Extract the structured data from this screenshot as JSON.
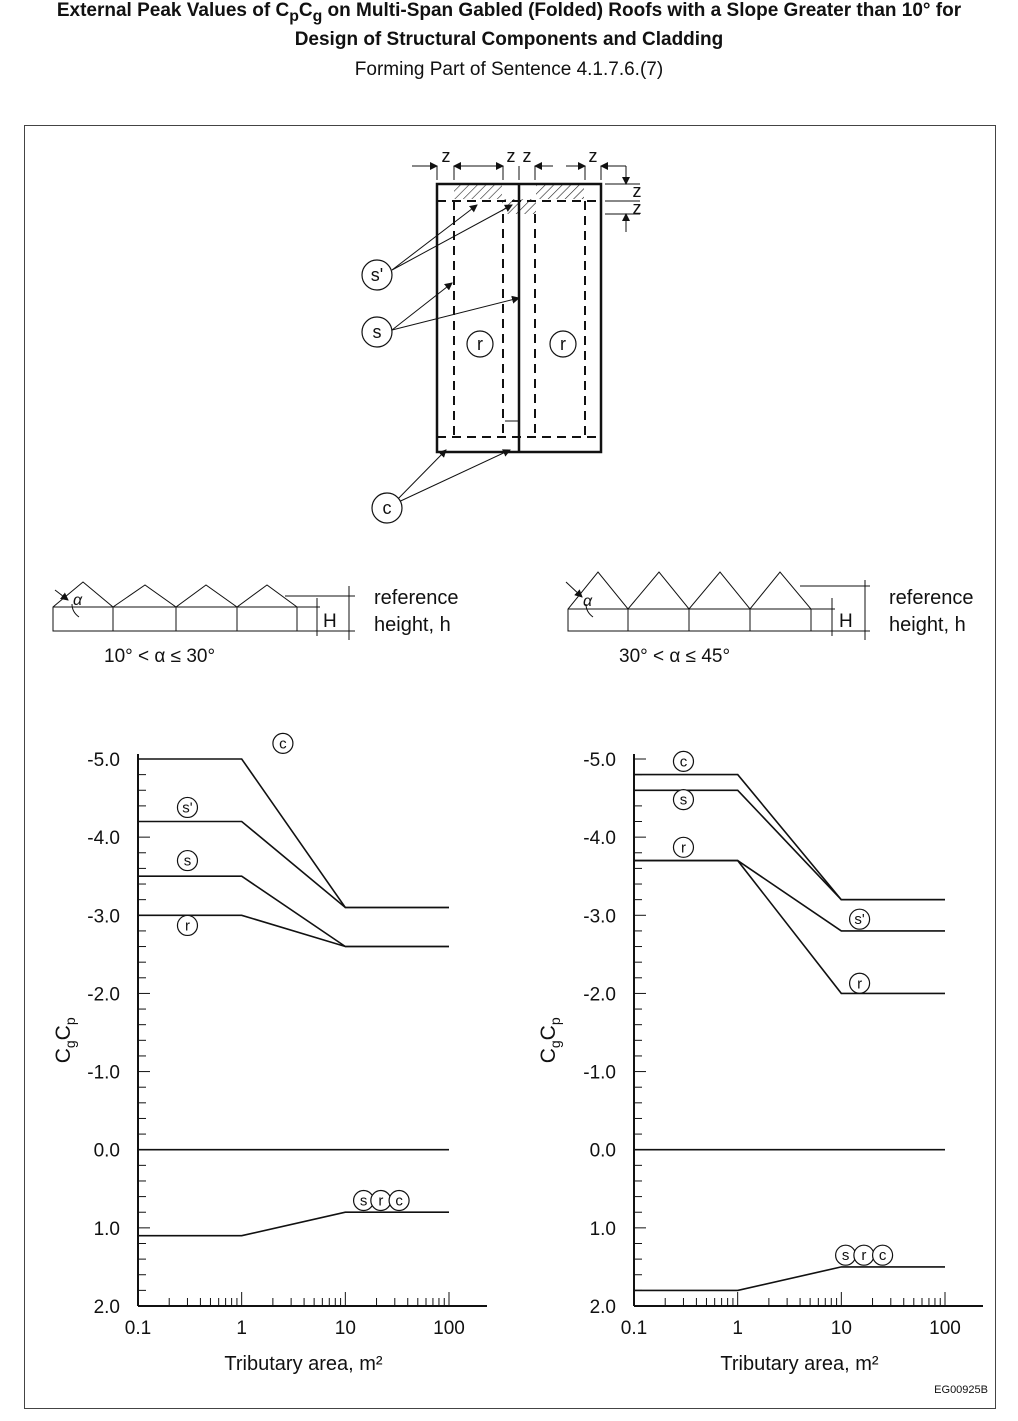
{
  "title": {
    "line1_pre": "External Peak Values of C",
    "line1_sub1": "p",
    "line1_mid": "C",
    "line1_sub2": "g",
    "line1_post": " on Multi-Span Gabled (Folded) Roofs with a Slope Greater than 10° for",
    "line2": "Design of Structural Components and Cladding",
    "line3": "Forming Part of Sentence 4.1.7.6.(7)"
  },
  "plan": {
    "dim_label": "z",
    "zone_labels": {
      "s_prime": "s'",
      "s": "s",
      "r": "r",
      "c": "c"
    }
  },
  "sections": [
    {
      "angle_symbol": "α",
      "range": "10° < α ≤ 30°",
      "height_label": "H",
      "ref_line1": "reference",
      "ref_line2": "height, h"
    },
    {
      "angle_symbol": "α",
      "range": "30° < α ≤ 45°",
      "height_label": "H",
      "ref_line1": "reference",
      "ref_line2": "height, h"
    }
  ],
  "code": "EG00925B",
  "chart_data": [
    {
      "type": "line",
      "xlabel": "Tributary area, m²",
      "ylabel_main": "C",
      "ylabel_sub1": "g",
      "ylabel_mid": "C",
      "ylabel_sub2": "p",
      "xscale": "log",
      "xlim": [
        0.1,
        100
      ],
      "xticks": [
        "0.1",
        "1",
        "10",
        "100"
      ],
      "ylim": [
        -5.0,
        2.0
      ],
      "yticks": [
        "-5.0",
        "-4.0",
        "-3.0",
        "-2.0",
        "-1.0",
        "0.0",
        "1.0",
        "2.0"
      ],
      "series": [
        {
          "name": "c",
          "x": [
            0.1,
            1,
            10,
            100
          ],
          "y": [
            -5.0,
            -5.0,
            -3.1,
            -3.1
          ]
        },
        {
          "name": "s'",
          "x": [
            0.1,
            1,
            10,
            100
          ],
          "y": [
            -4.2,
            -4.2,
            -3.1,
            -3.1
          ]
        },
        {
          "name": "s",
          "x": [
            0.1,
            1,
            10,
            100
          ],
          "y": [
            -3.5,
            -3.5,
            -2.6,
            -2.6
          ]
        },
        {
          "name": "r",
          "x": [
            0.1,
            1,
            10,
            100
          ],
          "y": [
            -3.0,
            -3.0,
            -2.6,
            -2.6
          ]
        },
        {
          "name": "",
          "x": [
            0.1,
            100
          ],
          "y": [
            0.0,
            0.0
          ]
        },
        {
          "name": "src",
          "x": [
            0.1,
            1,
            10,
            100
          ],
          "y": [
            1.1,
            1.1,
            0.8,
            0.8
          ]
        }
      ],
      "curve_labels": [
        {
          "text": "c",
          "x": 2.5,
          "y": -5.2
        },
        {
          "text": "s'",
          "x": 0.3,
          "y": -4.38
        },
        {
          "text": "s",
          "x": 0.3,
          "y": -3.7
        },
        {
          "text": "r",
          "x": 0.3,
          "y": -2.87
        },
        {
          "text": "s",
          "x": 15,
          "y": 0.65
        },
        {
          "text": "r",
          "x": 22,
          "y": 0.65
        },
        {
          "text": "c",
          "x": 33,
          "y": 0.65
        }
      ]
    },
    {
      "type": "line",
      "xlabel": "Tributary area, m²",
      "ylabel_main": "C",
      "ylabel_sub1": "g",
      "ylabel_mid": "C",
      "ylabel_sub2": "p",
      "xscale": "log",
      "xlim": [
        0.1,
        100
      ],
      "xticks": [
        "0.1",
        "1",
        "10",
        "100"
      ],
      "ylim": [
        -5.0,
        2.0
      ],
      "yticks": [
        "-5.0",
        "-4.0",
        "-3.0",
        "-2.0",
        "-1.0",
        "0.0",
        "1.0",
        "2.0"
      ],
      "series": [
        {
          "name": "c",
          "x": [
            0.1,
            1,
            10,
            100
          ],
          "y": [
            -4.8,
            -4.8,
            -3.2,
            -3.2
          ]
        },
        {
          "name": "s",
          "x": [
            0.1,
            1,
            10,
            100
          ],
          "y": [
            -4.6,
            -4.6,
            -3.2,
            -3.2
          ]
        },
        {
          "name": "s'",
          "x": [
            0.1,
            1,
            10,
            100
          ],
          "y": [
            -3.7,
            -3.7,
            -2.8,
            -2.8
          ]
        },
        {
          "name": "r",
          "x": [
            0.1,
            1,
            10,
            100
          ],
          "y": [
            -3.7,
            -3.7,
            -2.0,
            -2.0
          ]
        },
        {
          "name": "",
          "x": [
            0.1,
            100
          ],
          "y": [
            0.0,
            0.0
          ]
        },
        {
          "name": "src",
          "x": [
            0.1,
            1,
            10,
            100
          ],
          "y": [
            1.8,
            1.8,
            1.5,
            1.5
          ]
        }
      ],
      "curve_labels": [
        {
          "text": "c",
          "x": 0.3,
          "y": -4.97
        },
        {
          "text": "s",
          "x": 0.3,
          "y": -4.48
        },
        {
          "text": "r",
          "x": 0.3,
          "y": -3.87
        },
        {
          "text": "s'",
          "x": 15,
          "y": -2.95
        },
        {
          "text": "r",
          "x": 15,
          "y": -2.13
        },
        {
          "text": "s",
          "x": 11,
          "y": 1.35
        },
        {
          "text": "r",
          "x": 16.5,
          "y": 1.35
        },
        {
          "text": "c",
          "x": 25,
          "y": 1.35
        }
      ]
    }
  ]
}
